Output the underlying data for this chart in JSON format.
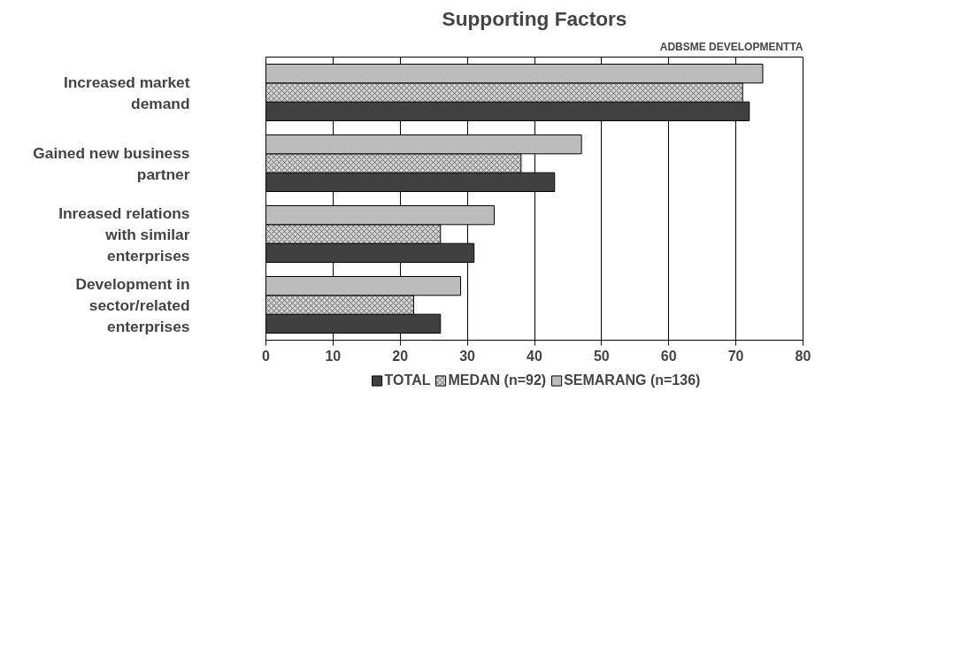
{
  "chart_data": {
    "type": "bar",
    "orientation": "horizontal",
    "title": "Supporting Factors",
    "annotations": [
      "ADBSME DEVELOPMENTTA"
    ],
    "categories": [
      "Increased market demand",
      "Gained new business partner",
      "Inreased relations with similar enterprises",
      "Development in sector/related enterprises"
    ],
    "series": [
      {
        "name": "TOTAL",
        "color": "#404040",
        "values": [
          72,
          43,
          31,
          26
        ]
      },
      {
        "name": "MEDAN (n=92)",
        "color": "#d0d0d0",
        "values": [
          71,
          38,
          26,
          22
        ]
      },
      {
        "name": "SEMARANG (n=136)",
        "color": "#bcbcbc",
        "values": [
          74,
          47,
          34,
          29
        ]
      }
    ],
    "xlim": [
      0,
      80
    ],
    "xticks": [
      0,
      10,
      20,
      30,
      40,
      50,
      60,
      70,
      80
    ],
    "grid": "x",
    "legend": "bottom"
  }
}
